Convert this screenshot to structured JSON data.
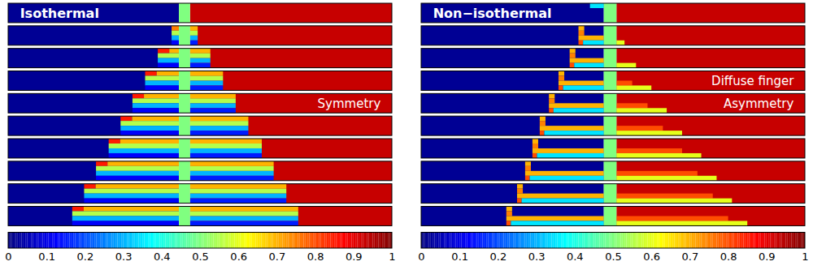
{
  "chart_data": {
    "type": "heatmap",
    "colorbar": {
      "range": [
        0,
        1
      ],
      "ticks": [
        0,
        0.1,
        0.2,
        0.3,
        0.4,
        0.5,
        0.6,
        0.7,
        0.8,
        0.9,
        1
      ]
    },
    "panels": [
      {
        "title": "Isothermal",
        "annotations": [
          "Symmetry"
        ],
        "left_value": 0.02,
        "right_value": 0.93,
        "inlet": {
          "x": [
            0.445,
            0.474
          ],
          "value": 0.5
        },
        "strips": [
          [
            [],
            [],
            [],
            []
          ],
          [
            [
              [
                0.426,
                0.445,
                0.75
              ],
              [
                0.474,
                0.494,
                0.7
              ]
            ],
            [
              [
                0.426,
                0.445,
                0.55
              ],
              [
                0.474,
                0.494,
                0.55
              ]
            ],
            [
              [
                0.426,
                0.445,
                0.3
              ],
              [
                0.474,
                0.494,
                0.3
              ]
            ],
            [
              [
                0.426,
                0.445,
                0.12
              ],
              [
                0.474,
                0.494,
                0.15
              ]
            ]
          ],
          [
            [
              [
                0.39,
                0.42,
                0.85
              ],
              [
                0.42,
                0.445,
                0.7
              ],
              [
                0.474,
                0.527,
                0.7
              ]
            ],
            [
              [
                0.39,
                0.445,
                0.55
              ],
              [
                0.474,
                0.527,
                0.55
              ]
            ],
            [
              [
                0.39,
                0.445,
                0.3
              ],
              [
                0.474,
                0.527,
                0.3
              ]
            ],
            [
              [
                0.39,
                0.445,
                0.12
              ],
              [
                0.474,
                0.527,
                0.15
              ]
            ]
          ],
          [
            [
              [
                0.357,
                0.387,
                0.85
              ],
              [
                0.387,
                0.445,
                0.7
              ],
              [
                0.474,
                0.56,
                0.7
              ]
            ],
            [
              [
                0.357,
                0.445,
                0.55
              ],
              [
                0.474,
                0.56,
                0.55
              ]
            ],
            [
              [
                0.357,
                0.445,
                0.3
              ],
              [
                0.474,
                0.56,
                0.3
              ]
            ],
            [
              [
                0.357,
                0.445,
                0.12
              ],
              [
                0.474,
                0.56,
                0.15
              ]
            ]
          ],
          [
            [
              [
                0.324,
                0.354,
                0.85
              ],
              [
                0.354,
                0.445,
                0.7
              ],
              [
                0.474,
                0.593,
                0.7
              ]
            ],
            [
              [
                0.324,
                0.445,
                0.55
              ],
              [
                0.474,
                0.593,
                0.55
              ]
            ],
            [
              [
                0.324,
                0.445,
                0.3
              ],
              [
                0.474,
                0.593,
                0.3
              ]
            ],
            [
              [
                0.324,
                0.445,
                0.12
              ],
              [
                0.474,
                0.593,
                0.15
              ]
            ]
          ],
          [
            [
              [
                0.293,
                0.323,
                0.85
              ],
              [
                0.323,
                0.445,
                0.7
              ],
              [
                0.474,
                0.626,
                0.7
              ]
            ],
            [
              [
                0.293,
                0.445,
                0.55
              ],
              [
                0.474,
                0.626,
                0.55
              ]
            ],
            [
              [
                0.293,
                0.445,
                0.3
              ],
              [
                0.474,
                0.626,
                0.3
              ]
            ],
            [
              [
                0.293,
                0.445,
                0.12
              ],
              [
                0.474,
                0.626,
                0.15
              ]
            ]
          ],
          [
            [
              [
                0.262,
                0.292,
                0.85
              ],
              [
                0.292,
                0.445,
                0.7
              ],
              [
                0.474,
                0.661,
                0.7
              ]
            ],
            [
              [
                0.262,
                0.445,
                0.55
              ],
              [
                0.474,
                0.661,
                0.55
              ]
            ],
            [
              [
                0.262,
                0.445,
                0.3
              ],
              [
                0.474,
                0.661,
                0.3
              ]
            ],
            [
              [
                0.262,
                0.445,
                0.12
              ],
              [
                0.474,
                0.661,
                0.15
              ]
            ]
          ],
          [
            [
              [
                0.229,
                0.259,
                0.85
              ],
              [
                0.259,
                0.445,
                0.7
              ],
              [
                0.474,
                0.692,
                0.7
              ]
            ],
            [
              [
                0.229,
                0.445,
                0.55
              ],
              [
                0.474,
                0.692,
                0.55
              ]
            ],
            [
              [
                0.229,
                0.445,
                0.3
              ],
              [
                0.474,
                0.692,
                0.3
              ]
            ],
            [
              [
                0.229,
                0.445,
                0.12
              ],
              [
                0.474,
                0.692,
                0.15
              ]
            ]
          ],
          [
            [
              [
                0.198,
                0.228,
                0.85
              ],
              [
                0.228,
                0.445,
                0.7
              ],
              [
                0.474,
                0.725,
                0.7
              ]
            ],
            [
              [
                0.198,
                0.445,
                0.55
              ],
              [
                0.474,
                0.725,
                0.55
              ]
            ],
            [
              [
                0.198,
                0.445,
                0.3
              ],
              [
                0.474,
                0.725,
                0.3
              ]
            ],
            [
              [
                0.198,
                0.445,
                0.12
              ],
              [
                0.474,
                0.725,
                0.15
              ]
            ]
          ],
          [
            [
              [
                0.167,
                0.197,
                0.85
              ],
              [
                0.197,
                0.445,
                0.7
              ],
              [
                0.474,
                0.756,
                0.7
              ]
            ],
            [
              [
                0.167,
                0.445,
                0.55
              ],
              [
                0.474,
                0.756,
                0.55
              ]
            ],
            [
              [
                0.167,
                0.445,
                0.3
              ],
              [
                0.474,
                0.756,
                0.3
              ]
            ],
            [
              [
                0.167,
                0.445,
                0.12
              ],
              [
                0.474,
                0.756,
                0.15
              ]
            ]
          ]
        ]
      },
      {
        "title": "Non−isothermal",
        "annotations": [
          "Diffuse finger",
          "Asymmetry"
        ],
        "left_value": 0.02,
        "right_value": 0.93,
        "inlet": {
          "x": [
            0.476,
            0.509
          ],
          "value": 0.5
        },
        "strips": [
          [
            [
              [
                0.44,
                0.476,
                0.35
              ]
            ],
            [],
            [],
            []
          ],
          [
            [
              [
                0.41,
                0.425,
                0.7
              ]
            ],
            [
              [
                0.41,
                0.425,
                0.75
              ]
            ],
            [
              [
                0.41,
                0.476,
                0.7
              ]
            ],
            [
              [
                0.41,
                0.422,
                0.8
              ],
              [
                0.422,
                0.476,
                0.35
              ],
              [
                0.509,
                0.53,
                0.6
              ]
            ]
          ],
          [
            [
              [
                0.387,
                0.402,
                0.7
              ]
            ],
            [
              [
                0.387,
                0.402,
                0.75
              ]
            ],
            [
              [
                0.387,
                0.476,
                0.7
              ]
            ],
            [
              [
                0.387,
                0.399,
                0.8
              ],
              [
                0.399,
                0.476,
                0.35
              ],
              [
                0.509,
                0.56,
                0.6
              ]
            ]
          ],
          [
            [
              [
                0.358,
                0.373,
                0.7
              ]
            ],
            [
              [
                0.358,
                0.373,
                0.75
              ]
            ],
            [
              [
                0.358,
                0.476,
                0.7
              ],
              [
                0.509,
                0.55,
                0.8
              ]
            ],
            [
              [
                0.358,
                0.37,
                0.8
              ],
              [
                0.37,
                0.476,
                0.35
              ],
              [
                0.509,
                0.6,
                0.6
              ]
            ]
          ],
          [
            [
              [
                0.333,
                0.348,
                0.7
              ]
            ],
            [
              [
                0.333,
                0.348,
                0.75
              ]
            ],
            [
              [
                0.333,
                0.476,
                0.7
              ],
              [
                0.509,
                0.59,
                0.8
              ]
            ],
            [
              [
                0.333,
                0.345,
                0.8
              ],
              [
                0.345,
                0.476,
                0.35
              ],
              [
                0.509,
                0.64,
                0.6
              ]
            ]
          ],
          [
            [
              [
                0.309,
                0.324,
                0.7
              ]
            ],
            [
              [
                0.309,
                0.324,
                0.75
              ]
            ],
            [
              [
                0.309,
                0.476,
                0.7
              ],
              [
                0.509,
                0.63,
                0.8
              ]
            ],
            [
              [
                0.309,
                0.321,
                0.8
              ],
              [
                0.321,
                0.476,
                0.35
              ],
              [
                0.509,
                0.68,
                0.6
              ]
            ]
          ],
          [
            [
              [
                0.29,
                0.305,
                0.7
              ]
            ],
            [
              [
                0.29,
                0.305,
                0.75
              ]
            ],
            [
              [
                0.29,
                0.476,
                0.7
              ],
              [
                0.509,
                0.68,
                0.8
              ]
            ],
            [
              [
                0.29,
                0.302,
                0.8
              ],
              [
                0.302,
                0.476,
                0.35
              ],
              [
                0.509,
                0.73,
                0.6
              ]
            ]
          ],
          [
            [
              [
                0.271,
                0.286,
                0.7
              ]
            ],
            [
              [
                0.271,
                0.286,
                0.75
              ]
            ],
            [
              [
                0.271,
                0.476,
                0.7
              ],
              [
                0.509,
                0.72,
                0.8
              ]
            ],
            [
              [
                0.271,
                0.283,
                0.8
              ],
              [
                0.283,
                0.476,
                0.35
              ],
              [
                0.509,
                0.77,
                0.6
              ]
            ]
          ],
          [
            [
              [
                0.25,
                0.265,
                0.7
              ]
            ],
            [
              [
                0.25,
                0.265,
                0.75
              ]
            ],
            [
              [
                0.25,
                0.476,
                0.7
              ],
              [
                0.509,
                0.76,
                0.8
              ]
            ],
            [
              [
                0.25,
                0.262,
                0.8
              ],
              [
                0.262,
                0.476,
                0.35
              ],
              [
                0.509,
                0.81,
                0.6
              ]
            ]
          ],
          [
            [
              [
                0.222,
                0.237,
                0.7
              ]
            ],
            [
              [
                0.222,
                0.237,
                0.75
              ]
            ],
            [
              [
                0.222,
                0.476,
                0.7
              ],
              [
                0.509,
                0.8,
                0.8
              ]
            ],
            [
              [
                0.222,
                0.234,
                0.8
              ],
              [
                0.234,
                0.476,
                0.35
              ],
              [
                0.509,
                0.85,
                0.6
              ]
            ]
          ]
        ]
      }
    ]
  }
}
